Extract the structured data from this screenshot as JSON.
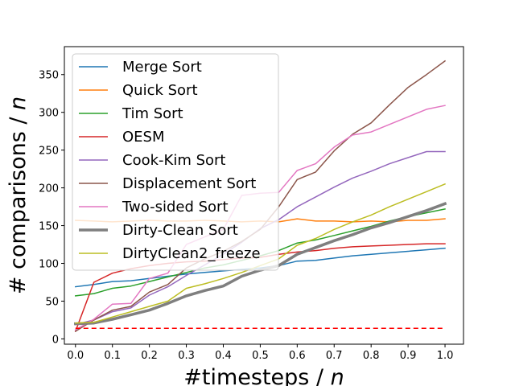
{
  "chart_data": {
    "type": "line",
    "title": "",
    "xlabel_main": "#timesteps / ",
    "xlabel_var": "n",
    "ylabel_main": "# comparisons / ",
    "ylabel_var": "n",
    "xlim": [
      -0.03,
      1.05
    ],
    "ylim": [
      -7,
      387
    ],
    "xticks": [
      0.0,
      0.1,
      0.2,
      0.3,
      0.4,
      0.5,
      0.6,
      0.7,
      0.8,
      0.9,
      1.0
    ],
    "xtick_labels": [
      "0.0",
      "0.1",
      "0.2",
      "0.3",
      "0.4",
      "0.5",
      "0.6",
      "0.7",
      "0.8",
      "0.9",
      "1.0"
    ],
    "yticks": [
      0,
      50,
      100,
      150,
      200,
      250,
      300,
      350
    ],
    "ytick_labels": [
      "0",
      "50",
      "100",
      "150",
      "200",
      "250",
      "300",
      "350"
    ],
    "grid": false,
    "legend_position": "upper-left",
    "x": [
      0.0,
      0.05,
      0.1,
      0.15,
      0.2,
      0.25,
      0.3,
      0.35,
      0.4,
      0.45,
      0.5,
      0.55,
      0.6,
      0.65,
      0.7,
      0.75,
      0.8,
      0.85,
      0.9,
      0.95,
      1.0
    ],
    "series": [
      {
        "name": "Merge Sort",
        "color": "#1f77b4",
        "width": 1.5,
        "values": [
          69,
          72,
          76,
          77,
          80,
          83,
          86,
          88,
          90,
          92,
          94,
          97,
          103,
          104,
          107,
          110,
          112,
          114,
          116,
          118,
          120
        ]
      },
      {
        "name": "Quick Sort",
        "color": "#ff7f0e",
        "width": 1.5,
        "values": [
          157,
          156,
          155,
          156,
          157,
          156,
          156,
          157,
          156,
          155,
          156,
          155,
          159,
          156,
          156,
          155,
          156,
          155,
          157,
          157,
          159
        ]
      },
      {
        "name": "Tim Sort",
        "color": "#2ca02c",
        "width": 1.5,
        "values": [
          57,
          60,
          67,
          70,
          76,
          82,
          88,
          94,
          98,
          104,
          110,
          117,
          127,
          131,
          137,
          143,
          149,
          156,
          162,
          167,
          172
        ]
      },
      {
        "name": "OESM",
        "color": "#d62728",
        "width": 1.5,
        "values": [
          10,
          75,
          87,
          93,
          97,
          100,
          102,
          103,
          105,
          107,
          108,
          112,
          115,
          117,
          120,
          122,
          123,
          124,
          125,
          126,
          126
        ]
      },
      {
        "name": "Cook-Kim Sort",
        "color": "#9467bd",
        "width": 1.5,
        "values": [
          19,
          25,
          36,
          41,
          58,
          69,
          84,
          98,
          112,
          128,
          146,
          158,
          175,
          188,
          201,
          213,
          222,
          232,
          240,
          248,
          248
        ]
      },
      {
        "name": "Displacement Sort",
        "color": "#8c564b",
        "width": 1.5,
        "values": [
          10,
          25,
          38,
          43,
          62,
          72,
          94,
          106,
          116,
          129,
          145,
          175,
          211,
          221,
          249,
          271,
          286,
          310,
          333,
          350,
          368
        ]
      },
      {
        "name": "Two-sided Sort",
        "color": "#e377c2",
        "width": 1.5,
        "values": [
          12,
          26,
          46,
          47,
          80,
          87,
          125,
          135,
          145,
          190,
          193,
          194,
          223,
          232,
          254,
          270,
          274,
          284,
          294,
          304,
          309
        ]
      },
      {
        "name": "Dirty-Clean Sort",
        "color": "#7f7f7f",
        "width": 3.5,
        "values": [
          20,
          21,
          26,
          32,
          38,
          47,
          57,
          64,
          70,
          83,
          91,
          97,
          112,
          121,
          130,
          138,
          147,
          154,
          162,
          170,
          179
        ]
      },
      {
        "name": "DirtyClean2_freeze",
        "color": "#bcbd22",
        "width": 1.5,
        "values": [
          21,
          22,
          29,
          36,
          43,
          50,
          67,
          73,
          80,
          88,
          97,
          106,
          124,
          133,
          145,
          155,
          164,
          175,
          185,
          195,
          205
        ]
      }
    ],
    "reference_line": {
      "y": 14,
      "color": "#ff0000",
      "style": "dashed"
    }
  }
}
